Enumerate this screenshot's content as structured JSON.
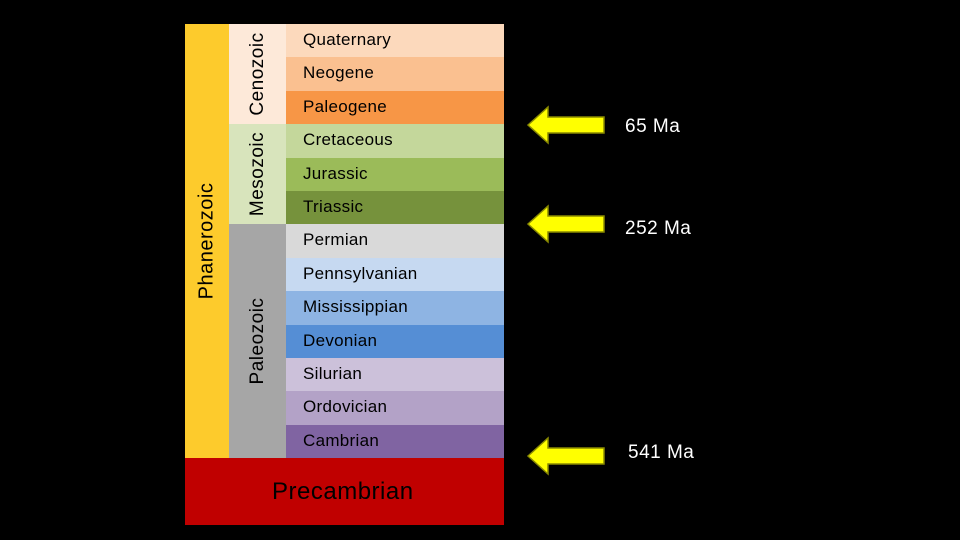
{
  "eon": {
    "label": "Phanerozoic",
    "color": "#fdcb2c"
  },
  "eras": [
    {
      "label": "Cenozoic",
      "color": "#fde9d9"
    },
    {
      "label": "Mesozoic",
      "color": "#d8e4bc"
    },
    {
      "label": "Paleozoic",
      "color": "#a6a6a6"
    }
  ],
  "periods": [
    {
      "label": "Quaternary",
      "color": "#fcd9bc"
    },
    {
      "label": "Neogene",
      "color": "#fac090"
    },
    {
      "label": "Paleogene",
      "color": "#f79646"
    },
    {
      "label": "Cretaceous",
      "color": "#c4d79b"
    },
    {
      "label": "Jurassic",
      "color": "#9bbb59"
    },
    {
      "label": "Triassic",
      "color": "#76923c"
    },
    {
      "label": "Permian",
      "color": "#d9d9d9"
    },
    {
      "label": "Pennsylvanian",
      "color": "#c6d9f1"
    },
    {
      "label": "Mississippian",
      "color": "#8eb4e3"
    },
    {
      "label": "Devonian",
      "color": "#558ed5"
    },
    {
      "label": "Silurian",
      "color": "#ccc1da"
    },
    {
      "label": "Ordovician",
      "color": "#b3a2c7"
    },
    {
      "label": "Cambrian",
      "color": "#8064a2"
    }
  ],
  "precambrian": {
    "label": "Precambrian",
    "color": "#c00000"
  },
  "boundaries": [
    {
      "age": "65 Ma"
    },
    {
      "age": "252 Ma"
    },
    {
      "age": "541 Ma"
    }
  ],
  "arrow_color": "#ffff00"
}
